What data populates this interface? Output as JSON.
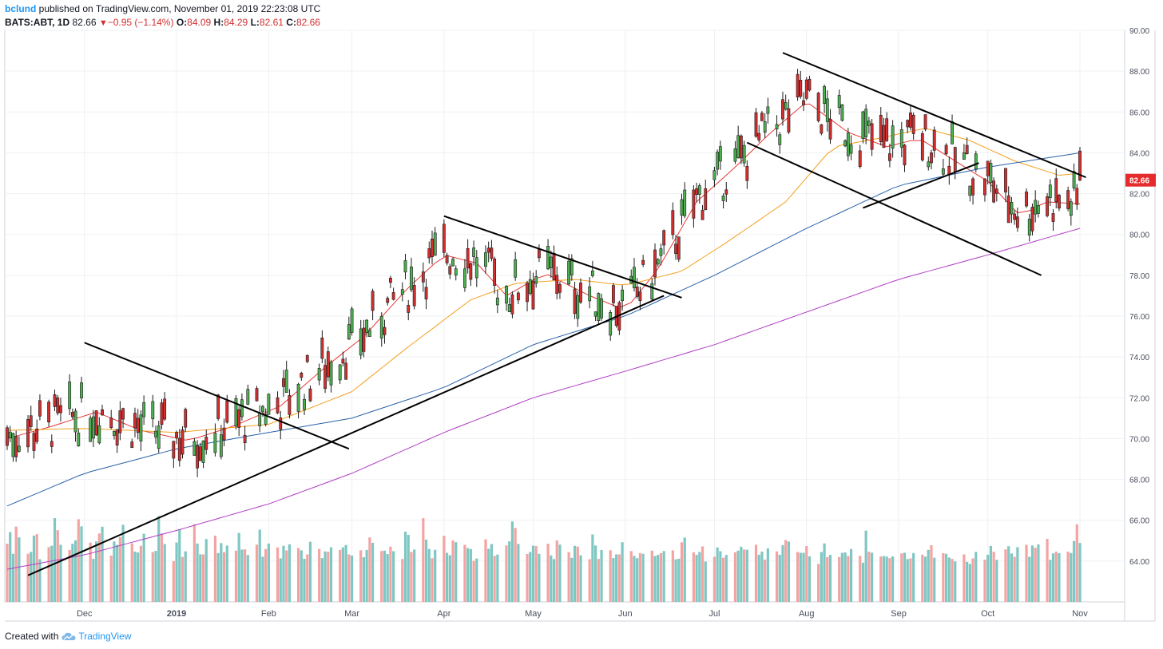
{
  "header": {
    "author": "bclund",
    "published_text": "published on TradingView.com, November 01, 2019 22:23:08 UTC",
    "symbol_label": "BATS:ABT, 1D",
    "last": "82.66",
    "change": "−0.95 (−1.14%)",
    "open_label": "O:",
    "open": "84.09",
    "high_label": "H:",
    "high": "84.29",
    "low_label": "L:",
    "low": "82.61",
    "close_label": "C:",
    "close": "82.66"
  },
  "footer": {
    "created_with": "Created with",
    "brand": "TradingView"
  },
  "icons": {
    "down_arrow": "triangle-down-icon",
    "brand_logo": "tradingview-cloud-icon"
  },
  "colors": {
    "up": "#4caf50",
    "down": "#d32f2f",
    "vol_up": "#7fc7c2",
    "vol_down": "#f4a3a3",
    "ma_short": "#e53935",
    "ma_mid": "#f5a020",
    "ma_100": "#2962a8",
    "ma_200": "#b03cc4",
    "price_tag": "#e52b2b",
    "trend_line": "#000000"
  },
  "chart_data": {
    "type": "candlestick",
    "symbol": "BATS:ABT",
    "interval": "1D",
    "ylim": [
      62.0,
      90.0
    ],
    "y_ticks": [
      "64.00",
      "66.00",
      "68.00",
      "70.00",
      "72.00",
      "74.00",
      "76.00",
      "78.00",
      "80.00",
      "82.00",
      "84.00",
      "86.00",
      "88.00",
      "90.00"
    ],
    "x_ticks": [
      "Dec",
      "2019",
      "Feb",
      "Mar",
      "Apr",
      "May",
      "Jun",
      "Jul",
      "Aug",
      "Sep",
      "Oct",
      "Nov"
    ],
    "x_tick_dates": [
      "2018-12-01",
      "2019-01-01",
      "2019-02-01",
      "2019-03-01",
      "2019-04-01",
      "2019-05-01",
      "2019-06-01",
      "2019-07-01",
      "2019-08-01",
      "2019-09-01",
      "2019-10-01",
      "2019-11-01"
    ],
    "x_range": [
      "2018-11-05",
      "2019-11-01"
    ],
    "last_price_label": "82.66",
    "grid": true,
    "moving_averages": [
      {
        "key": "ma_short",
        "points": [
          [
            "2018-11-05",
            70.0
          ],
          [
            "2018-11-20",
            70.6
          ],
          [
            "2018-12-05",
            71.3
          ],
          [
            "2018-12-20",
            70.4
          ],
          [
            "2019-01-05",
            69.9
          ],
          [
            "2019-01-20",
            70.6
          ],
          [
            "2019-02-05",
            71.6
          ],
          [
            "2019-02-20",
            73.5
          ],
          [
            "2019-03-05",
            75.0
          ],
          [
            "2019-03-20",
            77.4
          ],
          [
            "2019-04-01",
            79.0
          ],
          [
            "2019-04-12",
            78.6
          ],
          [
            "2019-04-22",
            77.0
          ],
          [
            "2019-05-05",
            78.1
          ],
          [
            "2019-05-20",
            77.0
          ],
          [
            "2019-06-01",
            76.3
          ],
          [
            "2019-06-12",
            78.3
          ],
          [
            "2019-06-25",
            81.6
          ],
          [
            "2019-07-08",
            83.3
          ],
          [
            "2019-07-20",
            85.0
          ],
          [
            "2019-08-01",
            86.5
          ],
          [
            "2019-08-15",
            85.0
          ],
          [
            "2019-08-28",
            84.3
          ],
          [
            "2019-09-08",
            84.7
          ],
          [
            "2019-09-20",
            83.6
          ],
          [
            "2019-10-01",
            82.6
          ],
          [
            "2019-10-12",
            80.9
          ],
          [
            "2019-10-20",
            81.6
          ],
          [
            "2019-11-01",
            81.5
          ]
        ]
      },
      {
        "key": "ma_mid",
        "points": [
          [
            "2018-11-05",
            70.4
          ],
          [
            "2018-12-01",
            70.5
          ],
          [
            "2019-01-01",
            70.3
          ],
          [
            "2019-02-01",
            70.7
          ],
          [
            "2019-03-01",
            72.3
          ],
          [
            "2019-03-20",
            74.5
          ],
          [
            "2019-04-10",
            76.8
          ],
          [
            "2019-04-25",
            77.6
          ],
          [
            "2019-05-15",
            77.8
          ],
          [
            "2019-06-01",
            77.5
          ],
          [
            "2019-06-20",
            78.2
          ],
          [
            "2019-07-05",
            79.6
          ],
          [
            "2019-07-25",
            81.6
          ],
          [
            "2019-08-10",
            84.3
          ],
          [
            "2019-08-25",
            84.7
          ],
          [
            "2019-09-10",
            85.2
          ],
          [
            "2019-09-25",
            84.6
          ],
          [
            "2019-10-10",
            83.6
          ],
          [
            "2019-10-25",
            82.9
          ],
          [
            "2019-11-01",
            83.0
          ]
        ]
      },
      {
        "key": "ma_100",
        "points": [
          [
            "2018-11-05",
            66.7
          ],
          [
            "2018-12-01",
            68.3
          ],
          [
            "2019-01-01",
            69.5
          ],
          [
            "2019-02-01",
            70.3
          ],
          [
            "2019-03-01",
            71.0
          ],
          [
            "2019-04-01",
            72.5
          ],
          [
            "2019-05-01",
            74.6
          ],
          [
            "2019-06-01",
            76.0
          ],
          [
            "2019-07-01",
            78.0
          ],
          [
            "2019-08-01",
            80.3
          ],
          [
            "2019-09-01",
            82.4
          ],
          [
            "2019-10-01",
            83.3
          ],
          [
            "2019-11-01",
            84.0
          ]
        ]
      },
      {
        "key": "ma_200",
        "points": [
          [
            "2018-11-05",
            63.6
          ],
          [
            "2018-12-01",
            64.3
          ],
          [
            "2019-01-01",
            65.5
          ],
          [
            "2019-02-01",
            66.8
          ],
          [
            "2019-03-01",
            68.3
          ],
          [
            "2019-04-01",
            70.3
          ],
          [
            "2019-05-01",
            72.0
          ],
          [
            "2019-06-01",
            73.3
          ],
          [
            "2019-07-01",
            74.6
          ],
          [
            "2019-08-01",
            76.2
          ],
          [
            "2019-09-01",
            77.8
          ],
          [
            "2019-10-01",
            79.0
          ],
          [
            "2019-11-01",
            80.3
          ]
        ]
      }
    ],
    "trend_lines": [
      {
        "from": [
          "2018-11-12",
          63.3
        ],
        "to": [
          "2019-06-14",
          77.0
        ]
      },
      {
        "from": [
          "2018-12-01",
          74.7
        ],
        "to": [
          "2019-02-28",
          69.5
        ]
      },
      {
        "from": [
          "2019-04-01",
          80.9
        ],
        "to": [
          "2019-06-20",
          76.9
        ]
      },
      {
        "from": [
          "2019-07-24",
          88.9
        ],
        "to": [
          "2019-11-03",
          82.8
        ]
      },
      {
        "from": [
          "2019-07-12",
          84.5
        ],
        "to": [
          "2019-10-19",
          78.0
        ]
      },
      {
        "from": [
          "2019-08-20",
          81.3
        ],
        "to": [
          "2019-09-28",
          83.5
        ]
      }
    ],
    "volume": {
      "ymax_ref": 10,
      "bars": [
        4.5,
        5.0,
        3.8,
        6.3,
        4.8,
        3.5,
        4.1,
        5.4,
        4.9,
        3.2,
        4.6,
        4.4,
        6.0,
        5.6,
        4.8,
        3.9,
        4.2,
        5.0,
        6.8,
        5.5,
        4.4,
        3.6,
        4.8,
        4.9,
        5.8,
        3.9,
        4.6,
        4.1,
        5.2,
        6.4,
        4.3,
        3.7,
        4.1,
        4.5,
        4.9,
        3.8,
        4.3,
        6.6,
        4.9,
        4.6,
        3.4,
        4.4,
        5.3,
        3.7,
        4.1,
        5.6,
        4.4,
        4.0,
        3.7,
        4.5,
        5.2,
        4.1,
        4.4,
        3.6,
        4.6,
        4.2,
        5.0,
        3.9,
        4.4,
        3.7,
        4.1,
        5.6,
        3.8,
        4.0,
        4.2,
        4.4,
        3.6,
        4.1,
        3.8,
        4.8,
        4.3,
        3.7,
        3.3,
        4.0,
        4.6,
        3.8,
        3.5,
        4.2,
        3.7,
        4.0,
        4.3,
        4.4,
        4.1,
        3.6,
        3.9,
        4.0,
        3.2,
        4.1,
        5.4,
        4.4,
        3.7,
        4.2,
        3.9,
        4.0,
        3.8,
        3.6,
        5.5,
        4.8,
        3.9,
        4.4,
        6.3,
        4.5,
        4.3,
        3.6,
        3.8,
        4.9,
        4.1,
        3.7,
        4.4,
        4.6,
        4.8,
        4.1,
        3.8,
        3.3,
        3.6,
        4.6,
        3.9,
        4.8,
        3.7,
        3.4,
        4.3,
        5.1,
        6.2,
        5.3,
        4.6,
        4.0,
        3.7,
        4.1,
        4.6,
        3.9,
        4.2,
        3.5,
        3.6,
        4.8,
        4.1,
        3.9,
        3.7,
        4.2,
        4.0,
        3.8,
        3.5,
        4.9,
        4.2,
        3.6,
        4.1,
        3.7,
        3.4,
        4.0,
        3.6,
        4.3,
        4.1,
        3.8,
        3.2,
        3.6,
        4.0,
        4.1,
        3.3,
        3.6,
        4.1,
        3.9,
        3.7,
        3.4,
        3.6,
        4.4,
        4.7,
        4.1,
        3.8,
        3.6,
        4.2,
        3.4,
        3.5,
        3.9,
        4.0,
        3.7,
        3.5,
        3.6,
        4.2,
        4.5,
        3.8,
        3.9,
        4.8,
        3.7,
        3.6,
        3.3,
        4.5,
        3.8,
        3.4,
        4.6,
        5.1,
        4.4,
        3.7,
        4.1,
        3.9,
        4.0,
        3.5,
        3.2,
        3.8,
        4.2,
        3.6,
        3.9,
        3.3,
        3.6,
        4.1,
        3.7,
        3.8,
        3.5,
        3.3,
        5.5,
        3.6,
        3.9,
        3.8,
        3.4,
        3.3,
        3.6,
        3.7,
        3.5,
        3.7,
        3.6,
        3.4,
        3.5,
        3.7,
        3.8,
        3.9,
        4.1,
        3.6,
        4.0,
        3.5,
        3.3,
        3.6,
        3.2,
        3.4,
        3.1,
        3.2,
        3.3,
        3.6,
        3.4,
        3.9,
        4.1,
        3.7,
        3.5,
        4.2,
        4.0,
        3.7,
        3.8,
        4.2,
        4.1,
        3.6,
        4.7,
        4.0,
        4.2,
        5.2,
        3.4,
        3.5,
        3.8,
        4.1,
        3.9,
        3.5,
        4.8,
        6.5,
        4.4,
        4.0,
        3.9,
        3.8,
        3.7,
        3.9,
        3.8,
        3.6,
        3.7
      ]
    },
    "candles_note": "one daily OHLC bar per trading day from 2018-11-05 to 2019-11-01, last bar O 84.09 H 84.29 L 82.61 C 82.66"
  }
}
